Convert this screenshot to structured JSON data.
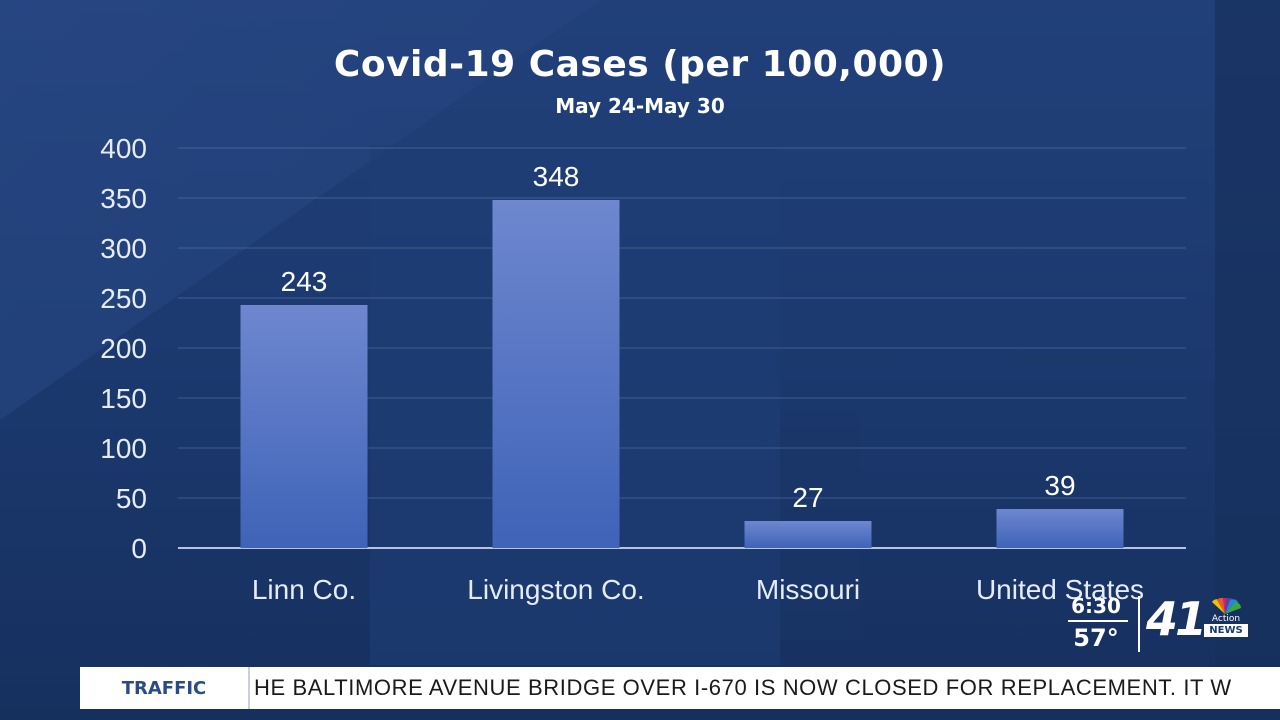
{
  "chart_data": {
    "type": "bar",
    "title": "Covid-19 Cases (per 100,000)",
    "subtitle": "May 24-May 30",
    "categories": [
      "Linn Co.",
      "Livingston Co.",
      "Missouri",
      "United States"
    ],
    "values": [
      243,
      348,
      27,
      39
    ],
    "data_labels": [
      "243",
      "348",
      "27",
      "39"
    ],
    "yticks": [
      0,
      50,
      100,
      150,
      200,
      250,
      300,
      350,
      400
    ],
    "ylim": [
      0,
      400
    ],
    "xlabel": "",
    "ylabel": "",
    "grid": true,
    "colors": {
      "bar_top": "#6e87cf",
      "bar_bottom": "#3f63b8",
      "grid": "#6f86b8",
      "text": "#ffffff",
      "axis_text": "#e6ecf7"
    }
  },
  "ticker": {
    "label": "TRAFFIC",
    "text": "HE BALTIMORE AVENUE BRIDGE OVER I-670 IS NOW CLOSED FOR REPLACEMENT. IT W"
  },
  "station_bug": {
    "time": "6:30",
    "temperature": "57°",
    "channel": "41",
    "action_label": "Action",
    "news_label": "NEWS"
  }
}
